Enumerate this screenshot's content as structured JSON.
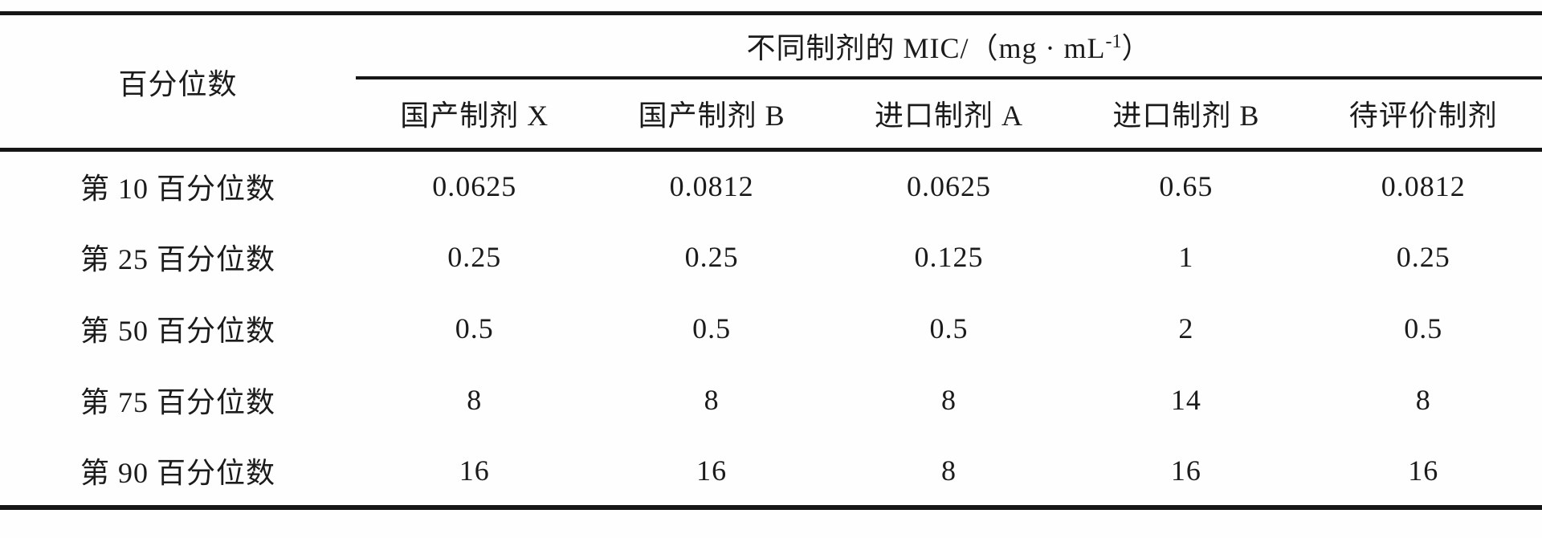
{
  "table": {
    "corner_header": "百分位数",
    "span_header": {
      "prefix": "不同制剂的 MIC/（mg · mL",
      "sup": "-1",
      "suffix": "）"
    },
    "columns": [
      "国产制剂 X",
      "国产制剂 B",
      "进口制剂 A",
      "进口制剂 B",
      "待评价制剂"
    ],
    "rows": [
      {
        "label": "第 10 百分位数",
        "values": [
          "0.0625",
          "0.0812",
          "0.0625",
          "0.65",
          "0.0812"
        ]
      },
      {
        "label": "第 25 百分位数",
        "values": [
          "0.25",
          "0.25",
          "0.125",
          "1",
          "0.25"
        ]
      },
      {
        "label": "第 50 百分位数",
        "values": [
          "0.5",
          "0.5",
          "0.5",
          "2",
          "0.5"
        ]
      },
      {
        "label": "第 75 百分位数",
        "values": [
          "8",
          "8",
          "8",
          "14",
          "8"
        ]
      },
      {
        "label": "第 90 百分位数",
        "values": [
          "16",
          "16",
          "8",
          "16",
          "16"
        ]
      }
    ]
  },
  "colors": {
    "rule": "#161616",
    "text": "#1b1b1b",
    "background": "#fefefe"
  }
}
